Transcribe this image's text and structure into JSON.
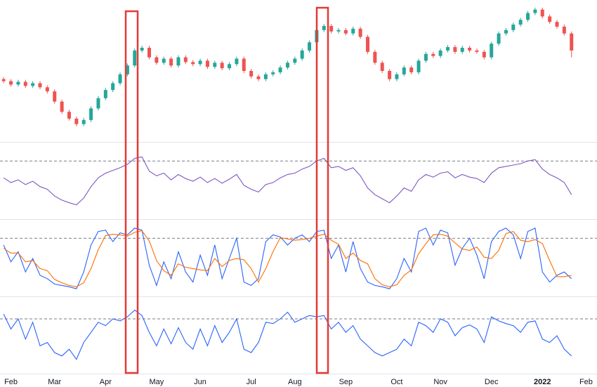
{
  "chart_data": [
    {
      "type": "candlestick",
      "categories": [
        null,
        "Feb",
        null,
        null,
        null,
        null,
        null,
        "Mar",
        null,
        null,
        null,
        null,
        null,
        null,
        "Apr",
        null,
        null,
        null,
        null,
        null,
        null,
        "May",
        null,
        null,
        null,
        null,
        null,
        "Jun",
        null,
        null,
        null,
        null,
        null,
        null,
        "Jul",
        null,
        null,
        null,
        null,
        null,
        "Aug",
        null,
        null,
        null,
        null,
        null,
        null,
        "Sep",
        null,
        null,
        null,
        null,
        null,
        null,
        "Oct",
        null,
        null,
        null,
        null,
        null,
        "Nov",
        null,
        null,
        null,
        null,
        null,
        null,
        "Dec",
        null,
        null,
        null,
        null,
        null,
        null,
        "2022",
        null,
        null,
        null,
        null,
        null,
        "Feb",
        null
      ],
      "open": [
        88,
        85,
        80,
        84,
        78,
        82,
        76,
        70,
        55,
        40,
        30,
        22,
        28,
        45,
        60,
        72,
        82,
        95,
        108,
        130,
        134,
        120,
        112,
        118,
        108,
        120,
        113,
        110,
        115,
        106,
        112,
        104,
        110,
        118,
        100,
        92,
        88,
        95,
        98,
        105,
        112,
        118,
        130,
        142,
        160,
        166,
        158,
        160,
        155,
        162,
        150,
        128,
        112,
        100,
        88,
        95,
        105,
        98,
        115,
        125,
        122,
        130,
        135,
        128,
        134,
        130,
        128,
        120,
        140,
        155,
        160,
        168,
        175,
        185,
        190,
        180,
        172,
        165,
        155,
        null,
        null,
        null
      ],
      "high": [
        91,
        88,
        87,
        87,
        85,
        85,
        79,
        73,
        58,
        43,
        33,
        31,
        48,
        63,
        75,
        85,
        98,
        111,
        133,
        137,
        137,
        123,
        121,
        121,
        123,
        123,
        116,
        118,
        118,
        115,
        115,
        113,
        121,
        121,
        103,
        95,
        98,
        101,
        108,
        115,
        121,
        133,
        145,
        163,
        169,
        169,
        163,
        163,
        165,
        165,
        153,
        131,
        115,
        103,
        98,
        108,
        108,
        118,
        128,
        128,
        133,
        138,
        138,
        137,
        137,
        133,
        131,
        143,
        158,
        163,
        171,
        178,
        188,
        193,
        193,
        183,
        175,
        168,
        158,
        null,
        null,
        null
      ],
      "low": [
        82,
        77,
        77,
        75,
        75,
        73,
        67,
        52,
        37,
        27,
        19,
        19,
        25,
        42,
        57,
        69,
        79,
        92,
        105,
        127,
        117,
        109,
        109,
        105,
        105,
        110,
        107,
        107,
        103,
        103,
        101,
        101,
        107,
        97,
        89,
        85,
        85,
        92,
        95,
        102,
        109,
        115,
        127,
        139,
        157,
        155,
        155,
        152,
        152,
        147,
        125,
        109,
        97,
        85,
        85,
        92,
        95,
        95,
        112,
        119,
        119,
        127,
        125,
        125,
        127,
        125,
        117,
        117,
        137,
        152,
        157,
        165,
        172,
        182,
        177,
        169,
        162,
        152,
        120,
        null,
        null,
        null
      ],
      "close": [
        85,
        80,
        84,
        78,
        82,
        76,
        70,
        55,
        40,
        30,
        22,
        28,
        45,
        60,
        72,
        82,
        95,
        108,
        130,
        134,
        120,
        112,
        118,
        108,
        120,
        113,
        110,
        115,
        106,
        112,
        104,
        110,
        118,
        100,
        92,
        88,
        95,
        98,
        105,
        112,
        118,
        130,
        142,
        160,
        166,
        158,
        160,
        155,
        162,
        150,
        128,
        112,
        100,
        88,
        95,
        105,
        98,
        115,
        125,
        122,
        130,
        135,
        128,
        134,
        130,
        128,
        120,
        140,
        155,
        160,
        168,
        175,
        185,
        190,
        180,
        172,
        165,
        155,
        130,
        null,
        null,
        null
      ],
      "up_color": "#26a69a",
      "down_color": "#ef5350",
      "ylim": [
        0,
        200
      ]
    },
    {
      "type": "line",
      "series": [
        {
          "color": "#7e57c2",
          "values": [
            55,
            48,
            52,
            45,
            50,
            42,
            38,
            28,
            22,
            18,
            15,
            25,
            42,
            55,
            62,
            66,
            70,
            75,
            84,
            86,
            65,
            58,
            62,
            52,
            60,
            54,
            50,
            56,
            48,
            54,
            47,
            53,
            60,
            44,
            38,
            34,
            45,
            48,
            55,
            60,
            62,
            68,
            72,
            80,
            84,
            70,
            72,
            66,
            70,
            58,
            40,
            30,
            24,
            18,
            28,
            40,
            35,
            52,
            60,
            56,
            62,
            64,
            55,
            60,
            56,
            54,
            48,
            62,
            70,
            72,
            74,
            76,
            80,
            82,
            68,
            60,
            55,
            48,
            30,
            null,
            null,
            null
          ]
        }
      ],
      "ylim": [
        0,
        100
      ],
      "reference_line": 80
    },
    {
      "type": "line",
      "series": [
        {
          "color": "#2962ff",
          "values": [
            70,
            45,
            60,
            30,
            50,
            25,
            20,
            12,
            10,
            8,
            5,
            30,
            70,
            90,
            92,
            75,
            88,
            85,
            95,
            92,
            40,
            10,
            45,
            20,
            60,
            30,
            15,
            55,
            25,
            70,
            20,
            50,
            80,
            15,
            10,
            20,
            75,
            85,
            82,
            70,
            80,
            85,
            75,
            90,
            92,
            50,
            70,
            30,
            75,
            35,
            15,
            10,
            8,
            5,
            20,
            50,
            30,
            90,
            95,
            70,
            92,
            88,
            40,
            65,
            80,
            55,
            20,
            75,
            90,
            95,
            85,
            50,
            90,
            95,
            30,
            15,
            25,
            30,
            20,
            null,
            null,
            null
          ]
        },
        {
          "color": "#ff6d00",
          "values": [
            65,
            58,
            58,
            45,
            47,
            35,
            32,
            19,
            14,
            10,
            8,
            14,
            35,
            63,
            84,
            86,
            85,
            83,
            89,
            91,
            76,
            47,
            32,
            25,
            42,
            37,
            35,
            33,
            32,
            50,
            38,
            47,
            50,
            48,
            35,
            15,
            35,
            60,
            81,
            79,
            77,
            78,
            80,
            83,
            86,
            77,
            71,
            50,
            58,
            47,
            42,
            20,
            11,
            8,
            11,
            25,
            33,
            57,
            72,
            85,
            86,
            83,
            73,
            64,
            62,
            67,
            52,
            50,
            62,
            87,
            90,
            77,
            75,
            78,
            72,
            47,
            23,
            23,
            25,
            null,
            null,
            null
          ]
        }
      ],
      "ylim": [
        0,
        100
      ],
      "reference_line": 80
    },
    {
      "type": "line",
      "series": [
        {
          "color": "#2962ff",
          "values": [
            82,
            60,
            75,
            45,
            70,
            35,
            40,
            25,
            20,
            30,
            15,
            40,
            55,
            70,
            65,
            75,
            72,
            78,
            88,
            80,
            55,
            35,
            60,
            38,
            62,
            40,
            30,
            60,
            35,
            65,
            40,
            55,
            75,
            30,
            25,
            40,
            70,
            68,
            75,
            85,
            70,
            75,
            80,
            78,
            80,
            60,
            70,
            55,
            65,
            45,
            35,
            25,
            20,
            25,
            30,
            45,
            35,
            70,
            65,
            55,
            75,
            70,
            50,
            62,
            66,
            60,
            40,
            78,
            72,
            68,
            65,
            55,
            70,
            72,
            45,
            40,
            50,
            30,
            20,
            null,
            null,
            null
          ]
        }
      ],
      "ylim": [
        0,
        100
      ],
      "reference_line": 75
    }
  ]
}
